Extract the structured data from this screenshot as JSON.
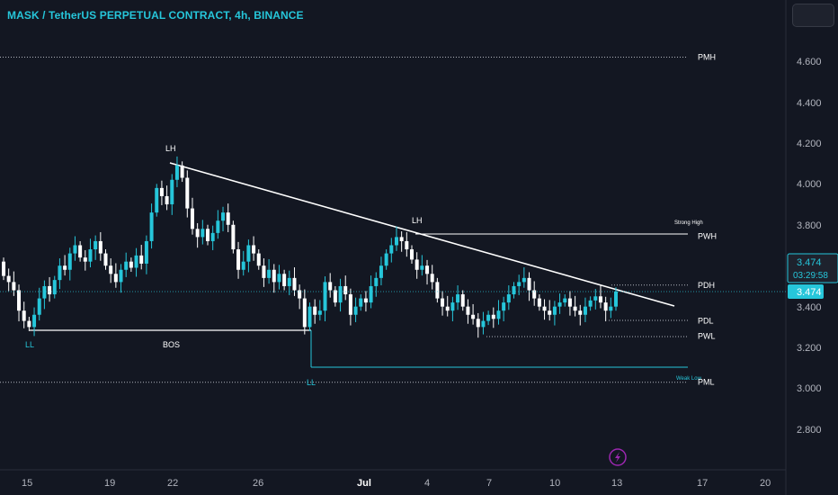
{
  "header": {
    "title": "MASK / TetherUS PERPETUAL CONTRACT, 4h, BINANCE"
  },
  "price_axis": {
    "ticks": [
      "4.600",
      "4.400",
      "4.200",
      "4.000",
      "3.800",
      "3.400",
      "3.200",
      "3.000",
      "2.800"
    ],
    "current_price_label": "3.474",
    "countdown_label": "03:29:58",
    "last_price_label": "3.474"
  },
  "time_axis": {
    "ticks": [
      "15",
      "19",
      "22",
      "26",
      "Jul",
      "4",
      "7",
      "10",
      "13",
      "17",
      "20"
    ]
  },
  "levels": [
    {
      "label": "PMH",
      "value": 4.62
    },
    {
      "label": "PWH",
      "value": 3.745
    },
    {
      "label": "PDH",
      "value": 3.505
    },
    {
      "label": "PDL",
      "value": 3.33
    },
    {
      "label": "PWL",
      "value": 3.255
    },
    {
      "label": "PML",
      "value": 3.03
    }
  ],
  "structure_labels": {
    "lh_1": "LH",
    "lh_2": "LH",
    "ll_1": "LL",
    "ll_2": "LL",
    "bos": "BOS",
    "strong_high": "Strong High",
    "weak_low": "Weak Low"
  },
  "colors": {
    "background": "#131722",
    "bull": "#26c6da",
    "bear": "#ffffff",
    "title": "#26c6da",
    "price_label_bg": "#26c6da",
    "level_line": "#b2b5be",
    "grid": "#1e222d"
  },
  "icons": {
    "lightning": "lightning-icon"
  },
  "chart_data": {
    "type": "candlestick",
    "title": "MASK / TetherUS PERPETUAL CONTRACT, 4h, BINANCE",
    "ylim": [
      2.7,
      4.85
    ],
    "x_ticks": [
      "15",
      "19",
      "22",
      "26",
      "Jul",
      "4",
      "7",
      "10",
      "13",
      "17",
      "20"
    ],
    "last_price": 3.474,
    "closes": [
      3.55,
      3.52,
      3.48,
      3.38,
      3.33,
      3.3,
      3.36,
      3.44,
      3.5,
      3.46,
      3.53,
      3.6,
      3.58,
      3.66,
      3.7,
      3.64,
      3.62,
      3.68,
      3.72,
      3.66,
      3.6,
      3.56,
      3.52,
      3.58,
      3.62,
      3.59,
      3.65,
      3.61,
      3.72,
      3.86,
      3.98,
      3.94,
      3.9,
      4.02,
      4.09,
      4.03,
      3.88,
      3.78,
      3.74,
      3.78,
      3.72,
      3.76,
      3.82,
      3.86,
      3.8,
      3.68,
      3.58,
      3.62,
      3.7,
      3.66,
      3.6,
      3.54,
      3.58,
      3.52,
      3.56,
      3.5,
      3.54,
      3.48,
      3.44,
      3.3,
      3.4,
      3.36,
      3.38,
      3.52,
      3.48,
      3.42,
      3.5,
      3.46,
      3.36,
      3.4,
      3.44,
      3.42,
      3.5,
      3.54,
      3.6,
      3.66,
      3.7,
      3.74,
      3.72,
      3.68,
      3.63,
      3.58,
      3.6,
      3.56,
      3.52,
      3.44,
      3.4,
      3.38,
      3.42,
      3.46,
      3.4,
      3.36,
      3.34,
      3.3,
      3.33,
      3.36,
      3.34,
      3.38,
      3.42,
      3.46,
      3.5,
      3.52,
      3.54,
      3.48,
      3.44,
      3.4,
      3.38,
      3.36,
      3.4,
      3.42,
      3.44,
      3.4,
      3.38,
      3.36,
      3.4,
      3.43,
      3.45,
      3.42,
      3.38,
      3.4,
      3.474
    ]
  }
}
